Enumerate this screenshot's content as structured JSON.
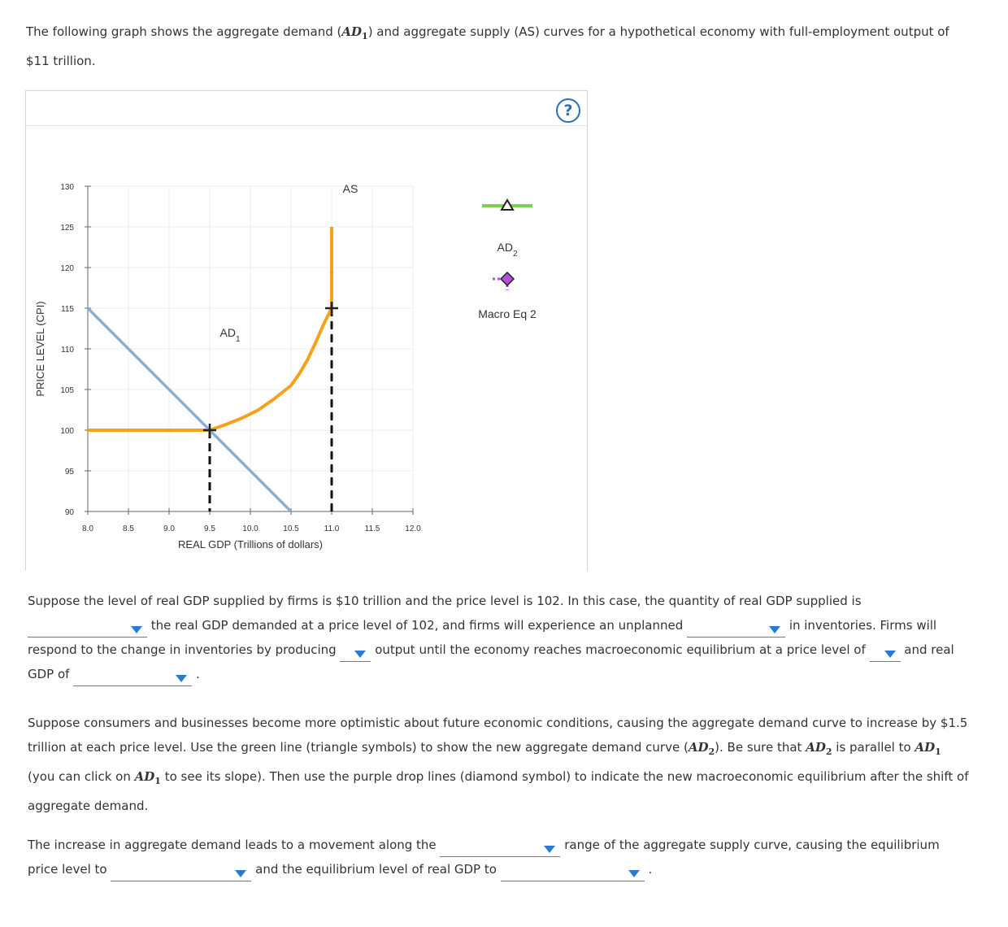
{
  "intro": {
    "part1": "The following graph shows the aggregate demand (",
    "ad_main": "AD",
    "ad_sub": "1",
    "part2": ") and aggregate supply (AS) curves for a hypothetical economy with full-employment output of $11 trillion."
  },
  "panel": {
    "help_label": "?"
  },
  "chart_data": {
    "type": "line",
    "xlabel": "REAL GDP (Trillions of dollars)",
    "ylabel": "PRICE LEVEL (CPI)",
    "xlim": [
      8.0,
      12.0
    ],
    "ylim": [
      90,
      130
    ],
    "x_ticks": [
      "8.0",
      "8.5",
      "9.0",
      "9.5",
      "10.0",
      "10.5",
      "11.0",
      "11.5",
      "12.0"
    ],
    "y_ticks": [
      "130",
      "125",
      "120",
      "115",
      "110",
      "105",
      "100",
      "95",
      "90"
    ],
    "grid": true,
    "colors": {
      "ad": "#89afd2",
      "as": "#f5a11c",
      "ad2": "#7ed04e",
      "eq": "#b44fd8",
      "drop": "#111111"
    },
    "series": [
      {
        "name": "AD",
        "name_sub": "1",
        "label_at": [
          9.75,
          111.5
        ],
        "points": [
          [
            8.0,
            115
          ],
          [
            10.5,
            90
          ]
        ]
      },
      {
        "name": "AS",
        "label_at": [
          11.23,
          129.2
        ],
        "points": [
          [
            8.0,
            100
          ],
          [
            9.5,
            100
          ],
          [
            9.7,
            100.7
          ],
          [
            9.9,
            101.5
          ],
          [
            10.1,
            102.5
          ],
          [
            10.3,
            103.9
          ],
          [
            10.5,
            105.5
          ],
          [
            10.6,
            106.9
          ],
          [
            10.7,
            108.6
          ],
          [
            10.8,
            110.7
          ],
          [
            10.9,
            113.0
          ],
          [
            11.0,
            115
          ],
          [
            11.0,
            118
          ],
          [
            11.0,
            125
          ]
        ]
      }
    ],
    "equilibria": [
      {
        "x": 9.5,
        "y": 100
      },
      {
        "x": 11.0,
        "y": 115
      }
    ],
    "legend": [
      {
        "label": "AD",
        "label_sub": "2",
        "symbol": "triangle",
        "color": "#7ed04e"
      },
      {
        "label": "Macro Eq 2",
        "symbol": "diamond",
        "color": "#b44fd8"
      }
    ],
    "legend_position": "right"
  },
  "q1": {
    "t1": "Suppose the level of real GDP supplied by firms is $10 trillion and the price level is 102. In this case, the quantity of real GDP supplied is",
    "t2": " the real GDP demanded at a price level of 102, and firms will experience an unplanned ",
    "t3": " in inventories. Firms will respond to the change in inventories by producing ",
    "t4": " output until the economy reaches macroeconomic equilibrium at a price level of ",
    "t5": " and real GDP of ",
    "t6": " ."
  },
  "q2": {
    "t1": "Suppose consumers and businesses become more optimistic about future economic conditions, causing the aggregate demand curve to increase by $1.5 trillion at each price level. Use the green line (triangle symbols) to show the new aggregate demand curve (",
    "m1": "AD",
    "s1": "2",
    "t2": "). Be sure that ",
    "m2": "AD",
    "s2": "2",
    "t3": " is parallel to ",
    "m3": "AD",
    "s3": "1",
    "t4": " (you can click on ",
    "m4": "AD",
    "s4": "1",
    "t5": " to see its slope). Then use the purple drop lines (diamond symbol) to indicate the new macroeconomic equilibrium after the shift of aggregate demand."
  },
  "q3": {
    "t1": "The increase in aggregate demand leads to a movement along the ",
    "t2": " range of the aggregate supply curve, causing the equilibrium price level to ",
    "t3": " and the equilibrium level of real GDP to ",
    "t4": " ."
  }
}
